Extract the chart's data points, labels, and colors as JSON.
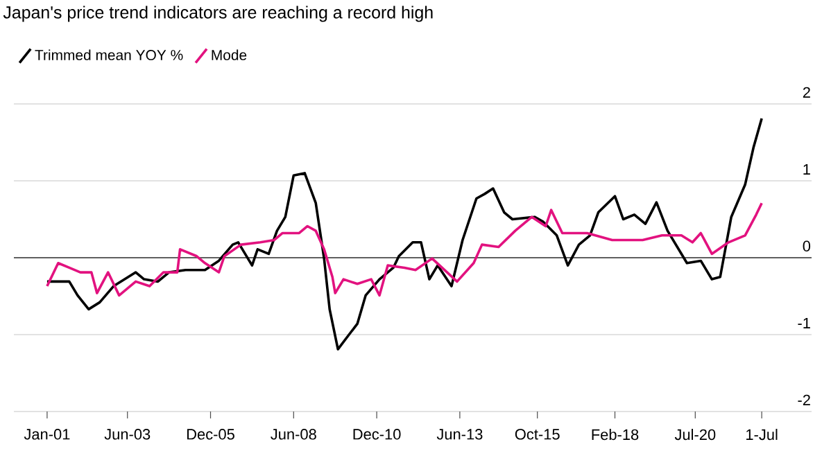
{
  "chart_data": {
    "type": "line",
    "title": "Japan's price trend indicators are reaching a record high",
    "series": [
      {
        "name": "Trimmed mean YOY %",
        "color": "#000000",
        "x": [
          "2001-01",
          "2001-06",
          "2001-09",
          "2001-12",
          "2002-04",
          "2002-08",
          "2003-01",
          "2003-05",
          "2003-09",
          "2003-12",
          "2004-05",
          "2004-09",
          "2005-03",
          "2005-10",
          "2006-03",
          "2006-08",
          "2006-10",
          "2007-03",
          "2007-05",
          "2007-09",
          "2007-12",
          "2008-03",
          "2008-06",
          "2008-10",
          "2009-02",
          "2009-05",
          "2009-07",
          "2009-10",
          "2010-02",
          "2010-05",
          "2010-08",
          "2011-01",
          "2011-06",
          "2011-08",
          "2012-01",
          "2012-04",
          "2012-07",
          "2012-10",
          "2013-03",
          "2013-07",
          "2013-12",
          "2014-03",
          "2014-06",
          "2014-10",
          "2015-01",
          "2015-09",
          "2015-12",
          "2016-05",
          "2016-09",
          "2017-01",
          "2017-05",
          "2017-08",
          "2018-02",
          "2018-05",
          "2018-09",
          "2019-01",
          "2019-05",
          "2019-09",
          "2020-04",
          "2020-09",
          "2021-01",
          "2021-04",
          "2021-08",
          "2022-01",
          "2022-04",
          "2022-07"
        ],
        "values": [
          -0.31,
          -0.31,
          -0.31,
          -0.49,
          -0.67,
          -0.58,
          -0.37,
          -0.28,
          -0.19,
          -0.28,
          -0.31,
          -0.19,
          -0.16,
          -0.16,
          -0.04,
          0.17,
          0.2,
          -0.1,
          0.11,
          0.05,
          0.35,
          0.53,
          1.07,
          1.1,
          0.71,
          -0.01,
          -0.67,
          -1.19,
          -1.0,
          -0.86,
          -0.49,
          -0.28,
          -0.13,
          0.02,
          0.2,
          0.2,
          -0.28,
          -0.1,
          -0.37,
          0.23,
          0.77,
          0.83,
          0.9,
          0.59,
          0.5,
          0.53,
          0.47,
          0.29,
          -0.1,
          0.17,
          0.29,
          0.59,
          0.8,
          0.5,
          0.56,
          0.44,
          0.72,
          0.35,
          -0.07,
          -0.04,
          -0.28,
          -0.25,
          0.53,
          0.95,
          1.43,
          1.81
        ]
      },
      {
        "name": "Mode",
        "color": "#e2127f",
        "x": [
          "2001-01",
          "2001-05",
          "2001-09",
          "2002-01",
          "2002-05",
          "2002-07",
          "2002-11",
          "2003-03",
          "2003-09",
          "2004-02",
          "2004-07",
          "2004-12",
          "2005-01",
          "2005-07",
          "2005-10",
          "2006-03",
          "2006-05",
          "2006-11",
          "2007-06",
          "2007-11",
          "2008-02",
          "2008-08",
          "2008-11",
          "2009-02",
          "2009-05",
          "2009-08",
          "2009-09",
          "2009-12",
          "2010-05",
          "2010-10",
          "2011-01",
          "2011-04",
          "2011-10",
          "2012-02",
          "2012-08",
          "2013-05",
          "2013-11",
          "2014-02",
          "2014-08",
          "2015-02",
          "2015-08",
          "2016-01",
          "2016-03",
          "2016-07",
          "2017-04",
          "2018-01",
          "2018-12",
          "2019-07",
          "2020-02",
          "2020-06",
          "2020-09",
          "2021-01",
          "2021-07",
          "2022-01",
          "2022-05",
          "2022-07"
        ],
        "values": [
          -0.37,
          -0.07,
          -0.13,
          -0.19,
          -0.19,
          -0.46,
          -0.19,
          -0.49,
          -0.31,
          -0.37,
          -0.19,
          -0.19,
          0.11,
          0.02,
          -0.07,
          -0.19,
          0.02,
          0.17,
          0.2,
          0.23,
          0.32,
          0.32,
          0.41,
          0.35,
          0.11,
          -0.25,
          -0.46,
          -0.28,
          -0.34,
          -0.28,
          -0.49,
          -0.1,
          -0.13,
          -0.16,
          -0.01,
          -0.31,
          -0.07,
          0.17,
          0.14,
          0.35,
          0.53,
          0.41,
          0.62,
          0.32,
          0.32,
          0.23,
          0.23,
          0.29,
          0.29,
          0.2,
          0.32,
          0.05,
          0.2,
          0.29,
          0.56,
          0.71
        ]
      }
    ],
    "xlim": [
      "2000-01",
      "2024-01"
    ],
    "xticks": [
      {
        "value": "2001-01",
        "label": "Jan-01"
      },
      {
        "value": "2003-06",
        "label": "Jun-03"
      },
      {
        "value": "2005-12",
        "label": "Dec-05"
      },
      {
        "value": "2008-06",
        "label": "Jun-08"
      },
      {
        "value": "2010-12",
        "label": "Dec-10"
      },
      {
        "value": "2013-06",
        "label": "Jun-13"
      },
      {
        "value": "2015-10",
        "label": "Oct-15"
      },
      {
        "value": "2018-02",
        "label": "Feb-18"
      },
      {
        "value": "2020-07",
        "label": "Jul-20"
      },
      {
        "value": "2022-07-01",
        "label": "1-Jul"
      }
    ],
    "ylim": [
      -2,
      2
    ],
    "yticks": [
      -2,
      -1,
      0,
      1,
      2
    ],
    "grid": "y",
    "legend": "top left",
    "line_style": "solid",
    "ref_lines": [
      {
        "axis": "y",
        "value": 0,
        "color": "#333333"
      }
    ]
  }
}
